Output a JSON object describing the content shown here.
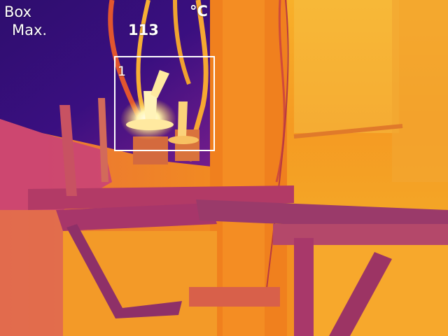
{
  "overlay": {
    "mode": "Box",
    "stat": "Max.",
    "value": "113",
    "unit": "°C",
    "box_number": "1"
  }
}
